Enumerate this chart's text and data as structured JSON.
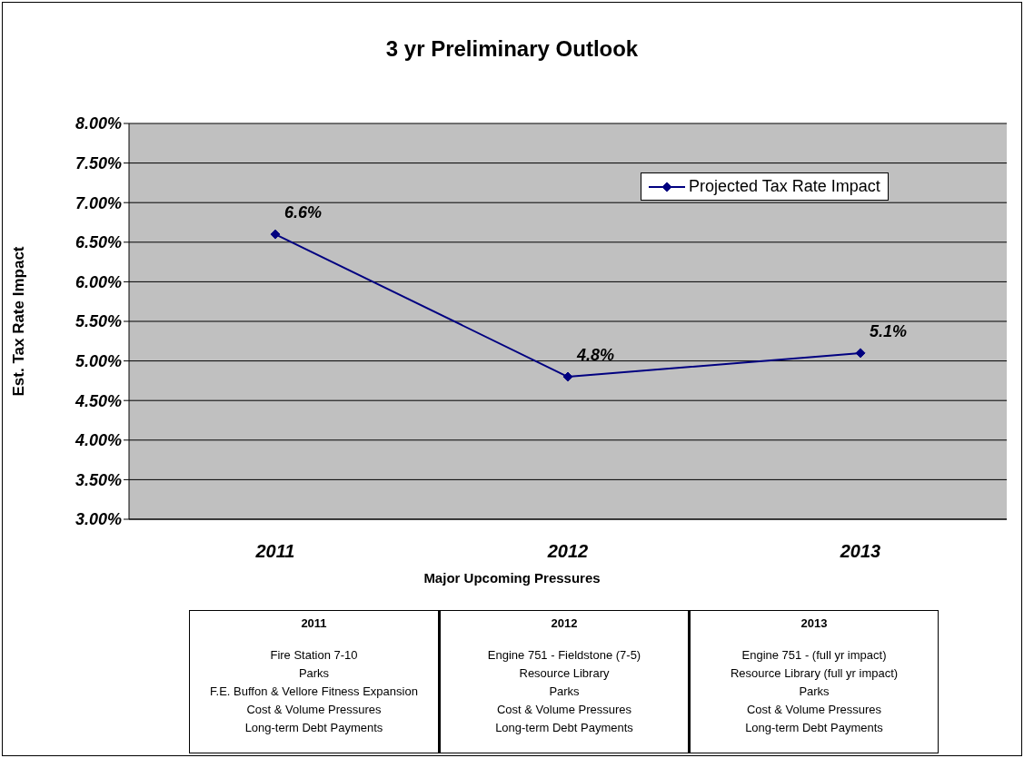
{
  "chart_data": {
    "type": "line",
    "title": "3 yr Preliminary Outlook",
    "xlabel": "Major Upcoming Pressures",
    "ylabel": "Est. Tax Rate Impact",
    "categories": [
      "2011",
      "2012",
      "2013"
    ],
    "series": [
      {
        "name": "Projected Tax Rate Impact",
        "color": "#000080",
        "values": [
          6.6,
          4.8,
          5.1
        ],
        "value_labels": [
          "6.6%",
          "4.8%",
          "5.1%"
        ]
      }
    ],
    "ylim": [
      3,
      8
    ],
    "yticks": [
      {
        "value": 3,
        "label": "3.00%"
      },
      {
        "value": 3.5,
        "label": "3.50%"
      },
      {
        "value": 4,
        "label": "4.00%"
      },
      {
        "value": 4.5,
        "label": "4.50%"
      },
      {
        "value": 5,
        "label": "5.00%"
      },
      {
        "value": 5.5,
        "label": "5.50%"
      },
      {
        "value": 6,
        "label": "6.00%"
      },
      {
        "value": 6.5,
        "label": "6.50%"
      },
      {
        "value": 7,
        "label": "7.00%"
      },
      {
        "value": 7.5,
        "label": "7.50%"
      },
      {
        "value": 8,
        "label": "8.00%"
      }
    ],
    "grid": "y",
    "legend": "top right",
    "marker": "diamond",
    "line_style": "solid",
    "annotations": [
      "Fire Station 7-10\nParks\nF.E. Buffon & Vellore Fitness Expansion\nCost & Volume Pressures\nLong-term Debt Payments",
      "Engine 751 - Fieldstone (7-5)\nResource Library\nParks\nCost & Volume Pressures\nLong-term Debt Payments",
      "Engine 751 - (full yr impact)\nResource Library (full yr impact)\nParks\nCost & Volume Pressures\nLong-term Debt Payments"
    ]
  }
}
